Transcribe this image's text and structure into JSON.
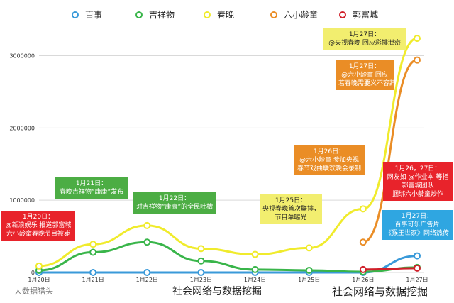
{
  "chart_data": {
    "type": "line",
    "categories": [
      "1月20日",
      "1月21日",
      "1月22日",
      "1月23日",
      "1月24日",
      "1月25日",
      "1月26日",
      "1月27日"
    ],
    "ylim": [
      0,
      3300000
    ],
    "yticks": [
      0,
      1000000,
      2000000,
      3000000
    ],
    "ytick_labels": [
      "0",
      "1000000",
      "2000000",
      "3000000"
    ],
    "grid": true,
    "legend_position": "top",
    "series": [
      {
        "name": "百事",
        "color": "#3a9ad9",
        "values": [
          0,
          0,
          0,
          0,
          0,
          0,
          0,
          230000
        ]
      },
      {
        "name": "吉祥物",
        "color": "#39b54a",
        "values": [
          30000,
          280000,
          420000,
          160000,
          40000,
          30000,
          10000,
          70000
        ]
      },
      {
        "name": "春晚",
        "color": "#f0eb2c",
        "values": [
          90000,
          390000,
          650000,
          330000,
          250000,
          340000,
          880000,
          3240000
        ]
      },
      {
        "name": "六小龄童",
        "color": "#ea8d26",
        "values": [
          null,
          null,
          null,
          null,
          null,
          null,
          420000,
          2940000
        ]
      },
      {
        "name": "郭富城",
        "color": "#d0202a",
        "values": [
          null,
          null,
          null,
          null,
          null,
          null,
          40000,
          60000
        ]
      }
    ],
    "annotations": [
      {
        "color": "red",
        "lines": [
          "1月20日：",
          "@新浪娱乐 报道郭富城",
          "六小龄童春晚节目被毙"
        ]
      },
      {
        "color": "green",
        "lines": [
          "1月21日：",
          "春晚吉祥物“康康”发布"
        ]
      },
      {
        "color": "green",
        "lines": [
          "1月22日：",
          "对吉祥物“康康”的全民吐槽"
        ]
      },
      {
        "color": "yellow",
        "lines": [
          "1月25日：",
          "央视春晚首次联排，",
          "节目单曝光"
        ]
      },
      {
        "color": "orange",
        "lines": [
          "1月26日：",
          "@六小龄童 参加央视",
          "春节戏曲联欢晚会录制"
        ]
      },
      {
        "color": "yellow",
        "lines": [
          "1月27日：",
          "@央视春晚 回应彩排泄密"
        ]
      },
      {
        "color": "orange",
        "lines": [
          "1月27日：",
          "@六小龄童 回应",
          "若春晚需要义不容辞"
        ]
      },
      {
        "color": "red",
        "lines": [
          "1月26，27日：",
          "网友如 @作业本 等指",
          "郭富城团队",
          "捆绑六小龄童炒作"
        ]
      },
      {
        "color": "blue",
        "lines": [
          "1月27日：",
          "百事可乐广告片",
          "《猴王世家》网络热传"
        ]
      }
    ]
  },
  "watermarks": {
    "logo_text": "大数据猎头",
    "center": "社会网络与数据挖掘",
    "right": "社会网络与数据挖掘"
  }
}
